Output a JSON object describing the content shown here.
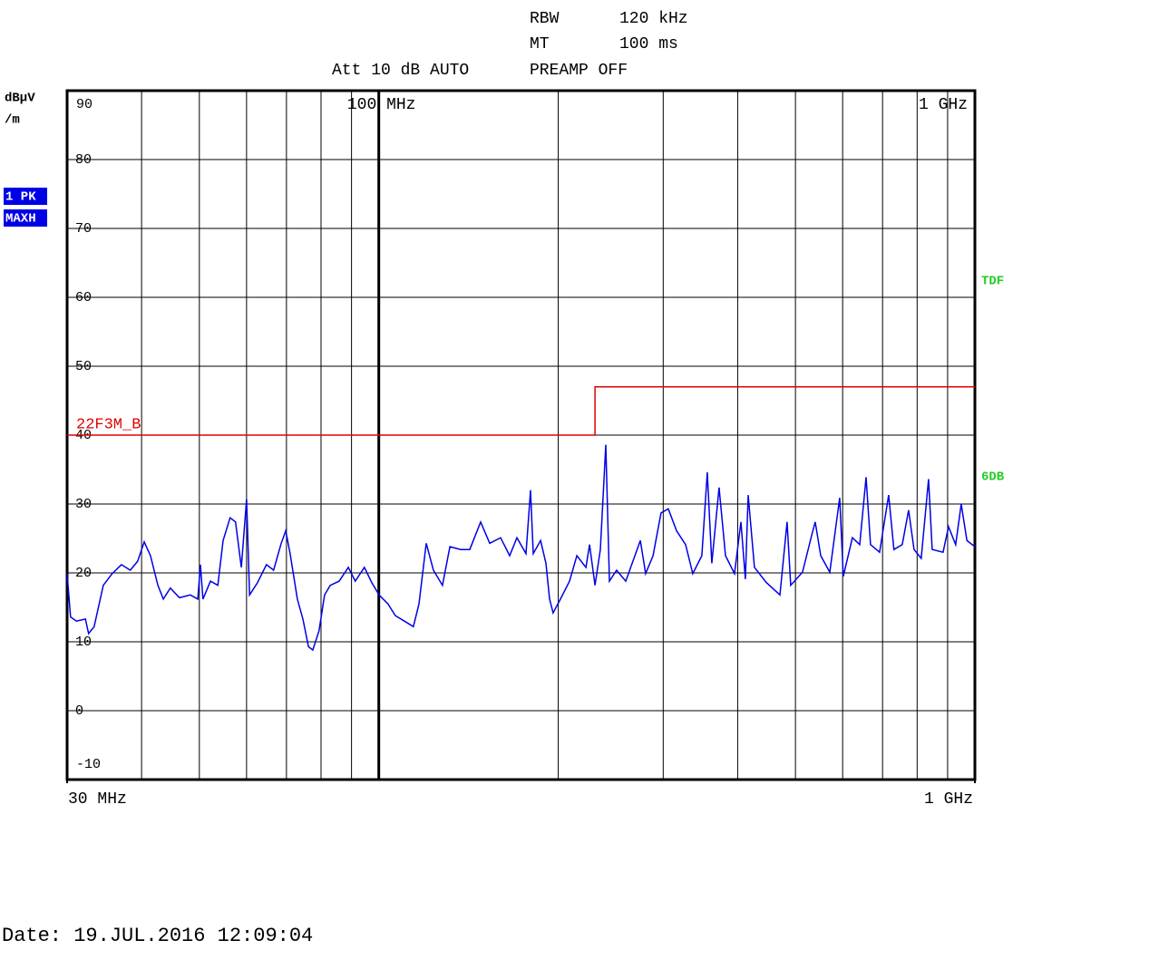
{
  "chart_data": {
    "type": "line",
    "header": {
      "rbw_label": "RBW",
      "rbw": "120 kHz",
      "mt_label": "MT",
      "mt": "100 ms",
      "att": "Att 10 dB AUTO",
      "preamp": "PREAMP OFF"
    },
    "ylabel": [
      "dBµV",
      "/m"
    ],
    "trace_labels": [
      "1 PK",
      "MAXH"
    ],
    "right_labels": [
      "TDF",
      "6DB"
    ],
    "footer": "Date: 19.JUL.2016  12:09:04",
    "xscale": "log",
    "xlim": [
      30,
      1000
    ],
    "xticks": [
      {
        "value": 30,
        "label": "30 MHz"
      },
      {
        "value": 1000,
        "label": "1 GHz"
      }
    ],
    "xticks_top": [
      {
        "value": 100,
        "label": "100 MHz"
      },
      {
        "value": 1000,
        "label": "1 GHz"
      }
    ],
    "xgrid": [
      40,
      50,
      60,
      70,
      80,
      90,
      200,
      300,
      400,
      500,
      600,
      700,
      800,
      900
    ],
    "ylim": [
      -10,
      90
    ],
    "yticks": [
      90,
      80,
      70,
      60,
      50,
      40,
      30,
      20,
      10,
      0,
      -10
    ],
    "grid": true,
    "series": [
      {
        "name": "22F3M_B",
        "color": "#e00000",
        "x": [
          30,
          230.5,
          230.5,
          1000
        ],
        "values": [
          40,
          40,
          47,
          47
        ]
      },
      {
        "color": "#0000e6",
        "x": [
          30,
          30.4,
          31.1,
          32.2,
          32.6,
          33.3,
          34.5,
          35.7,
          37.0,
          38.3,
          39.4,
          40.4,
          41.4,
          42.6,
          43.5,
          44.7,
          46.3,
          48.3,
          49.7,
          50.2,
          50.7,
          52.2,
          53.7,
          54.8,
          56.3,
          57.5,
          58.8,
          60.0,
          60.7,
          62.6,
          64.8,
          66.6,
          68.6,
          69.8,
          71.0,
          73.0,
          74.6,
          76.2,
          77.5,
          79.4,
          81.1,
          82.9,
          85.8,
          88.9,
          91.3,
          94.6,
          97.3,
          100.1,
          103.6,
          106.6,
          110.4,
          114.3,
          116.8,
          120.1,
          123.5,
          127.9,
          131.6,
          137.2,
          142.1,
          148.2,
          153.5,
          160.1,
          165.8,
          170.5,
          176.6,
          179.7,
          181.6,
          186.8,
          190.7,
          193.4,
          196.1,
          201.7,
          208.9,
          214.9,
          222.6,
          225.7,
          230.5,
          235.3,
          240.3,
          243.7,
          250.6,
          259.6,
          268.9,
          274.6,
          280.3,
          288.4,
          297.5,
          305.9,
          315.9,
          327.1,
          336.3,
          348.3,
          355.7,
          362.0,
          372.3,
          381.6,
          395.1,
          405.0,
          412.1,
          416.5,
          426.7,
          446.7,
          470.8,
          484.1,
          491.0,
          513.8,
          532.2,
          539.7,
          551.3,
          571.0,
          593.1,
          601.5,
          623.0,
          640.9,
          656.7,
          668.2,
          692.0,
          716.6,
          731.5,
          755.4,
          774.0,
          790.6,
          812.8,
          836.0,
          847.8,
          884.3,
          903.2,
          928.5,
          948.4,
          969.5,
          1000
        ],
        "values": [
          19.9,
          13.6,
          13.0,
          13.3,
          11.2,
          12.2,
          18.2,
          19.9,
          21.2,
          20.4,
          21.7,
          24.5,
          22.5,
          18.2,
          16.2,
          17.8,
          16.4,
          16.8,
          16.2,
          21.2,
          16.2,
          18.8,
          18.2,
          24.7,
          28.0,
          27.4,
          20.8,
          30.7,
          16.8,
          18.6,
          21.2,
          20.4,
          24.3,
          26.1,
          22.8,
          16.2,
          13.3,
          9.3,
          8.8,
          11.6,
          16.8,
          18.2,
          18.8,
          20.8,
          18.8,
          20.8,
          18.6,
          16.8,
          15.5,
          13.8,
          13.0,
          12.2,
          15.5,
          24.3,
          20.4,
          18.2,
          23.8,
          23.4,
          23.4,
          27.4,
          24.3,
          25.1,
          22.5,
          25.1,
          22.8,
          32.0,
          22.8,
          24.7,
          21.4,
          16.2,
          14.2,
          16.2,
          18.8,
          22.5,
          20.8,
          24.1,
          18.2,
          23.4,
          38.6,
          18.8,
          20.4,
          18.8,
          22.5,
          24.7,
          19.9,
          22.5,
          28.7,
          29.3,
          26.1,
          24.1,
          19.9,
          22.5,
          34.6,
          21.4,
          32.4,
          22.5,
          19.9,
          27.4,
          19.1,
          31.3,
          20.8,
          18.6,
          16.8,
          27.4,
          18.2,
          20.1,
          25.4,
          27.4,
          22.5,
          20.1,
          30.9,
          19.5,
          25.1,
          24.1,
          33.9,
          24.1,
          23.0,
          31.3,
          23.4,
          24.1,
          29.1,
          23.4,
          22.1,
          33.6,
          23.4,
          23.0,
          26.7,
          24.1,
          30.0,
          24.7,
          23.8
        ]
      }
    ]
  }
}
